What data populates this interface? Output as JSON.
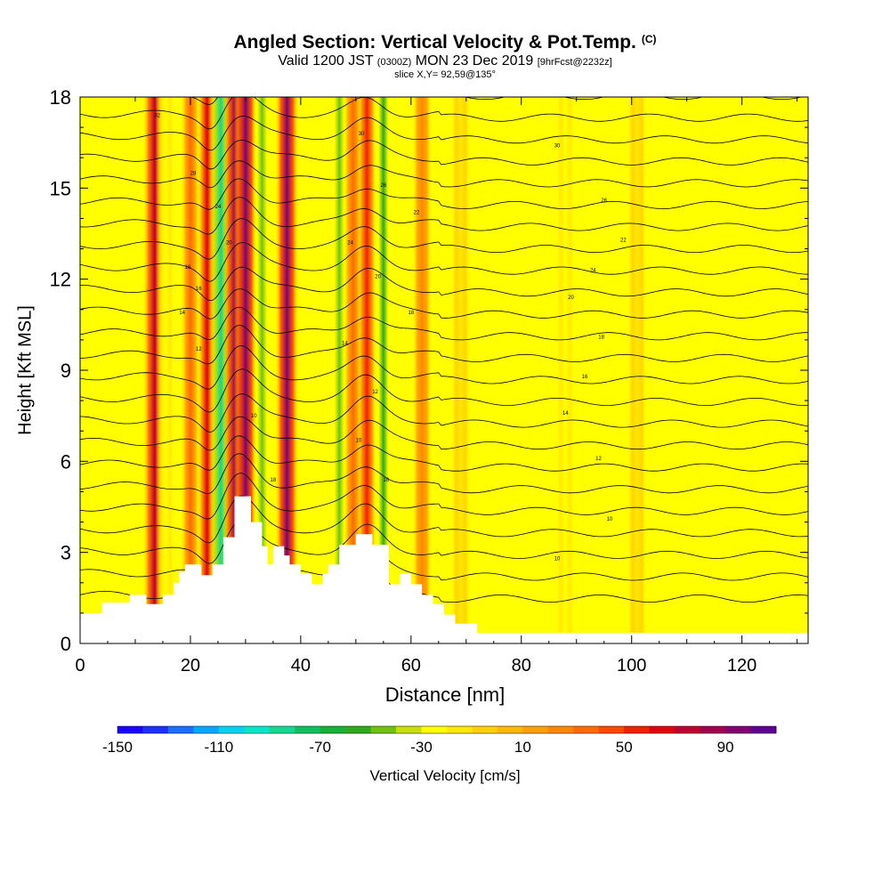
{
  "title": "Angled Section: Vertical Velocity & Pot.Temp.",
  "copyright": "(C)",
  "subtitle_a": "Valid 1200 JST",
  "subtitle_b": "(0300Z)",
  "subtitle_c": "MON 23 Dec 2019",
  "subtitle_d": "[9hrFcst@2232z]",
  "slice": "slice X,Y= 92,59@135°",
  "colorbar_label": "Vertical Velocity [cm/s]",
  "colorbar_ticks": [
    "-150",
    "-110",
    "-70",
    "-30",
    "10",
    "50",
    "90"
  ],
  "colorbar_colors": [
    "#1a00ff",
    "#1e30ff",
    "#1e6eff",
    "#00a8ff",
    "#00d2f0",
    "#00e8c8",
    "#10d890",
    "#10c060",
    "#18b038",
    "#30a820",
    "#70c010",
    "#c8e000",
    "#ffff00",
    "#ffe800",
    "#ffd000",
    "#ffb800",
    "#ffa000",
    "#ff8800",
    "#ff6a00",
    "#ff4800",
    "#f02000",
    "#e00010",
    "#c00030",
    "#a00050",
    "#800070",
    "#600090"
  ],
  "chart_data": {
    "type": "heatmap",
    "title": "Angled Section: Vertical Velocity & Pot.Temp.",
    "xlabel": "Distance [nm]",
    "ylabel": "Height [Kft MSL]",
    "xlim": [
      0,
      132
    ],
    "ylim": [
      0,
      18
    ],
    "x_ticks": [
      0,
      20,
      40,
      60,
      80,
      100,
      120
    ],
    "y_ticks": [
      0,
      3,
      6,
      9,
      12,
      15,
      18
    ],
    "colorbar": {
      "label": "Vertical Velocity [cm/s]",
      "min": -150,
      "max": 110,
      "step": 10,
      "tick_values": [
        -150,
        -110,
        -70,
        -30,
        10,
        50,
        90
      ]
    },
    "vertical_velocity_bands": [
      {
        "x": 13.5,
        "v": 75
      },
      {
        "x": 15.5,
        "v": -25
      },
      {
        "x": 20,
        "v": 30
      },
      {
        "x": 23,
        "v": 65
      },
      {
        "x": 25.5,
        "v": -85
      },
      {
        "x": 28,
        "v": 80
      },
      {
        "x": 30,
        "v": 95
      },
      {
        "x": 33,
        "v": -45
      },
      {
        "x": 37.5,
        "v": 90
      },
      {
        "x": 47,
        "v": -45
      },
      {
        "x": 49.5,
        "v": 35
      },
      {
        "x": 52,
        "v": 55
      },
      {
        "x": 55,
        "v": -60
      },
      {
        "x": 62,
        "v": 25
      },
      {
        "x": 69,
        "v": -20
      },
      {
        "x": 88,
        "v": -30
      },
      {
        "x": 101,
        "v": -20
      }
    ],
    "terrain": [
      [
        0,
        1
      ],
      [
        4,
        1
      ],
      [
        4,
        1.35
      ],
      [
        9,
        1.35
      ],
      [
        9,
        1.6
      ],
      [
        12,
        1.6
      ],
      [
        12,
        1.3
      ],
      [
        15,
        1.3
      ],
      [
        15,
        1.6
      ],
      [
        17,
        1.6
      ],
      [
        17,
        2.0
      ],
      [
        18,
        2.0
      ],
      [
        18,
        2.35
      ],
      [
        19,
        2.35
      ],
      [
        19,
        2.6
      ],
      [
        22,
        2.6
      ],
      [
        22,
        2.25
      ],
      [
        24,
        2.25
      ],
      [
        24,
        2.6
      ],
      [
        26,
        2.6
      ],
      [
        26,
        3.5
      ],
      [
        28,
        3.5
      ],
      [
        28,
        4.85
      ],
      [
        31,
        4.85
      ],
      [
        31,
        4.0
      ],
      [
        33,
        4.0
      ],
      [
        33,
        3.2
      ],
      [
        34,
        3.2
      ],
      [
        34,
        2.6
      ],
      [
        35,
        2.6
      ],
      [
        35,
        3.2
      ],
      [
        37,
        3.2
      ],
      [
        37,
        2.9
      ],
      [
        38,
        2.9
      ],
      [
        38,
        2.6
      ],
      [
        40,
        2.6
      ],
      [
        40,
        2.3
      ],
      [
        42,
        2.3
      ],
      [
        42,
        1.95
      ],
      [
        44,
        1.95
      ],
      [
        44,
        2.3
      ],
      [
        45,
        2.3
      ],
      [
        45,
        2.6
      ],
      [
        47,
        2.6
      ],
      [
        47,
        3.25
      ],
      [
        50,
        3.25
      ],
      [
        50,
        3.6
      ],
      [
        53,
        3.6
      ],
      [
        53,
        3.25
      ],
      [
        56,
        3.25
      ],
      [
        56,
        1.95
      ],
      [
        58,
        1.95
      ],
      [
        58,
        2.3
      ],
      [
        60,
        2.3
      ],
      [
        60,
        1.95
      ],
      [
        62,
        1.95
      ],
      [
        62,
        1.6
      ],
      [
        64,
        1.6
      ],
      [
        64,
        1.3
      ],
      [
        66,
        1.3
      ],
      [
        66,
        0.95
      ],
      [
        68,
        0.95
      ],
      [
        68,
        0.65
      ],
      [
        72,
        0.65
      ],
      [
        72,
        0.35
      ],
      [
        132,
        0.35
      ]
    ],
    "isentrope_labels": [
      {
        "x": 14,
        "y": 17.4,
        "text": "32"
      },
      {
        "x": 20.5,
        "y": 15.5,
        "text": "28"
      },
      {
        "x": 25,
        "y": 14.4,
        "text": "24"
      },
      {
        "x": 27,
        "y": 13.2,
        "text": "20"
      },
      {
        "x": 19.5,
        "y": 12.4,
        "text": "18"
      },
      {
        "x": 21.5,
        "y": 11.7,
        "text": "16"
      },
      {
        "x": 18.5,
        "y": 10.9,
        "text": "14"
      },
      {
        "x": 21.5,
        "y": 9.7,
        "text": "12"
      },
      {
        "x": 31.5,
        "y": 7.5,
        "text": "10"
      },
      {
        "x": 35,
        "y": 5.4,
        "text": "18"
      },
      {
        "x": 51,
        "y": 16.8,
        "text": "30"
      },
      {
        "x": 55,
        "y": 15.1,
        "text": "26"
      },
      {
        "x": 61,
        "y": 14.2,
        "text": "22"
      },
      {
        "x": 49,
        "y": 13.2,
        "text": "24"
      },
      {
        "x": 54,
        "y": 12.1,
        "text": "20"
      },
      {
        "x": 60,
        "y": 10.9,
        "text": "18"
      },
      {
        "x": 48,
        "y": 9.9,
        "text": "14"
      },
      {
        "x": 53.5,
        "y": 8.3,
        "text": "12"
      },
      {
        "x": 50.5,
        "y": 6.7,
        "text": "10"
      },
      {
        "x": 55.5,
        "y": 5.4,
        "text": "16"
      },
      {
        "x": 86.5,
        "y": 16.4,
        "text": "30"
      },
      {
        "x": 95,
        "y": 14.6,
        "text": "26"
      },
      {
        "x": 98.5,
        "y": 13.3,
        "text": "22"
      },
      {
        "x": 93,
        "y": 12.3,
        "text": "24"
      },
      {
        "x": 89,
        "y": 11.4,
        "text": "20"
      },
      {
        "x": 94.5,
        "y": 10.1,
        "text": "18"
      },
      {
        "x": 91.5,
        "y": 8.8,
        "text": "16"
      },
      {
        "x": 88,
        "y": 7.6,
        "text": "14"
      },
      {
        "x": 94,
        "y": 6.1,
        "text": "12"
      },
      {
        "x": 96,
        "y": 4.1,
        "text": "10"
      },
      {
        "x": 86.5,
        "y": 2.8,
        "text": "10"
      }
    ]
  }
}
